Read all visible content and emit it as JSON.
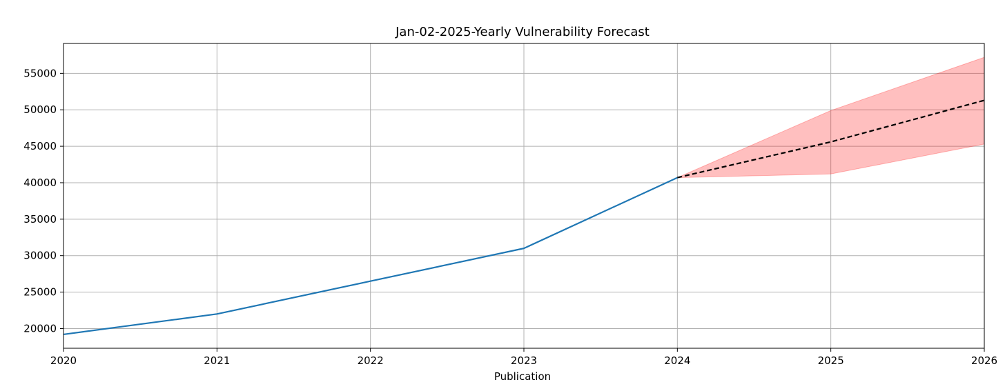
{
  "chart_data": {
    "type": "line",
    "title": "Jan-02-2025-Yearly Vulnerability Forecast",
    "xlabel": "Publication",
    "ylabel": "",
    "xlim": [
      2020,
      2026
    ],
    "ylim": [
      17300,
      59100
    ],
    "x_ticks": [
      "2020",
      "2021",
      "2022",
      "2023",
      "2024",
      "2025",
      "2026"
    ],
    "y_ticks": [
      "20000",
      "25000",
      "30000",
      "35000",
      "40000",
      "45000",
      "50000",
      "55000"
    ],
    "grid": true,
    "legend": "none",
    "series": [
      {
        "role": "actual",
        "style": "solid",
        "color": "#1f77b4",
        "x": [
          2020,
          2021,
          2022,
          2023,
          2024.0
        ],
        "y": [
          19200,
          22000,
          26500,
          31000,
          40700
        ]
      },
      {
        "role": "forecast",
        "style": "dashed",
        "color": "#000000",
        "x": [
          2024.0,
          2025,
          2026
        ],
        "y": [
          40700,
          45600,
          51300
        ]
      }
    ],
    "confidence_band": {
      "color": "#ff0000",
      "opacity": 0.25,
      "x": [
        2024.0,
        2025,
        2026
      ],
      "lower": [
        40700,
        41200,
        45300
      ],
      "upper": [
        40700,
        49900,
        57200
      ]
    }
  }
}
